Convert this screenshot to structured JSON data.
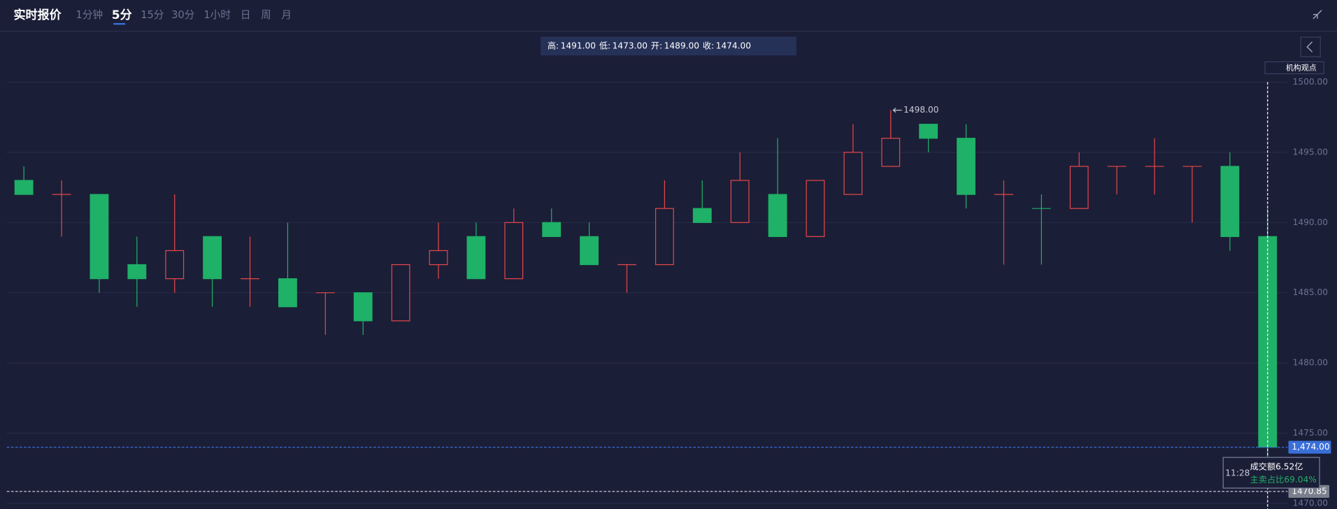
{
  "header": {
    "title": "实时报价",
    "tabs": [
      "1分钟",
      "5分",
      "15分",
      "30分",
      "1小时",
      "日",
      "周",
      "月"
    ],
    "active_tab": 1
  },
  "info_bar": [
    {
      "label": "高:",
      "value": "1491.00"
    },
    {
      "label": "低:",
      "value": "1473.00"
    },
    {
      "label": "开:",
      "value": "1489.00"
    },
    {
      "label": "收:",
      "value": "1474.00"
    }
  ],
  "button": "机构观点",
  "tooltip": {
    "time": "11:28",
    "amount": "成交额6.52亿",
    "ratio": "主卖占比69.04%"
  },
  "chart_data": {
    "type": "candlestick",
    "open": [
      1493,
      1492,
      1492,
      1487,
      1486,
      1489,
      1486,
      1486,
      1485,
      1485,
      1483,
      1487,
      1489,
      1486,
      1490,
      1489,
      1487,
      1487,
      1491,
      1490,
      1492,
      1489,
      1492,
      1494,
      1497,
      1496,
      1492,
      1491,
      1491,
      1494,
      1494,
      1494,
      1494,
      1489
    ],
    "high": [
      1494,
      1493,
      1492,
      1489,
      1492,
      1489,
      1489,
      1490,
      1485,
      1485,
      1487,
      1490,
      1490,
      1491,
      1491,
      1490,
      1487,
      1493,
      1493,
      1495,
      1496,
      1493,
      1497,
      1498,
      1497,
      1497,
      1493,
      1492,
      1495,
      1494,
      1496,
      1494,
      1495,
      1491
    ],
    "low": [
      1492,
      1489,
      1485,
      1484,
      1485,
      1484,
      1484,
      1484,
      1482,
      1482,
      1483,
      1486,
      1486,
      1486,
      1489,
      1487,
      1485,
      1487,
      1490,
      1490,
      1489,
      1489,
      1492,
      1494,
      1495,
      1491,
      1487,
      1487,
      1491,
      1492,
      1492,
      1490,
      1488,
      1473
    ],
    "close": [
      1492,
      1492,
      1486,
      1486,
      1488,
      1486,
      1486,
      1484,
      1485,
      1483,
      1487,
      1488,
      1486,
      1490,
      1489,
      1487,
      1487,
      1491,
      1490,
      1493,
      1489,
      1493,
      1495,
      1496,
      1496,
      1492,
      1492,
      1491,
      1494,
      1494,
      1494,
      1494,
      1489,
      1474
    ],
    "up_color": "#e5474a",
    "down_color": "#1fb167",
    "ylim": [
      1469.6,
      1503.6
    ],
    "yticks": [
      {
        "value": 1470,
        "label": "1470.00"
      },
      {
        "value": 1475,
        "label": "1475.00"
      },
      {
        "value": 1480,
        "label": "1480.00"
      },
      {
        "value": 1485,
        "label": "1485.00"
      },
      {
        "value": 1490,
        "label": "1490.00"
      },
      {
        "value": 1495,
        "label": "1495.00"
      },
      {
        "value": 1500,
        "label": "1500.00"
      }
    ],
    "grid": true,
    "max_label": {
      "value": 1498,
      "label": "1498.00"
    },
    "last_price": {
      "value": 1474,
      "label": "1,474.00"
    },
    "cursor_price": {
      "value": 1470.85,
      "label": "1470.85"
    }
  }
}
